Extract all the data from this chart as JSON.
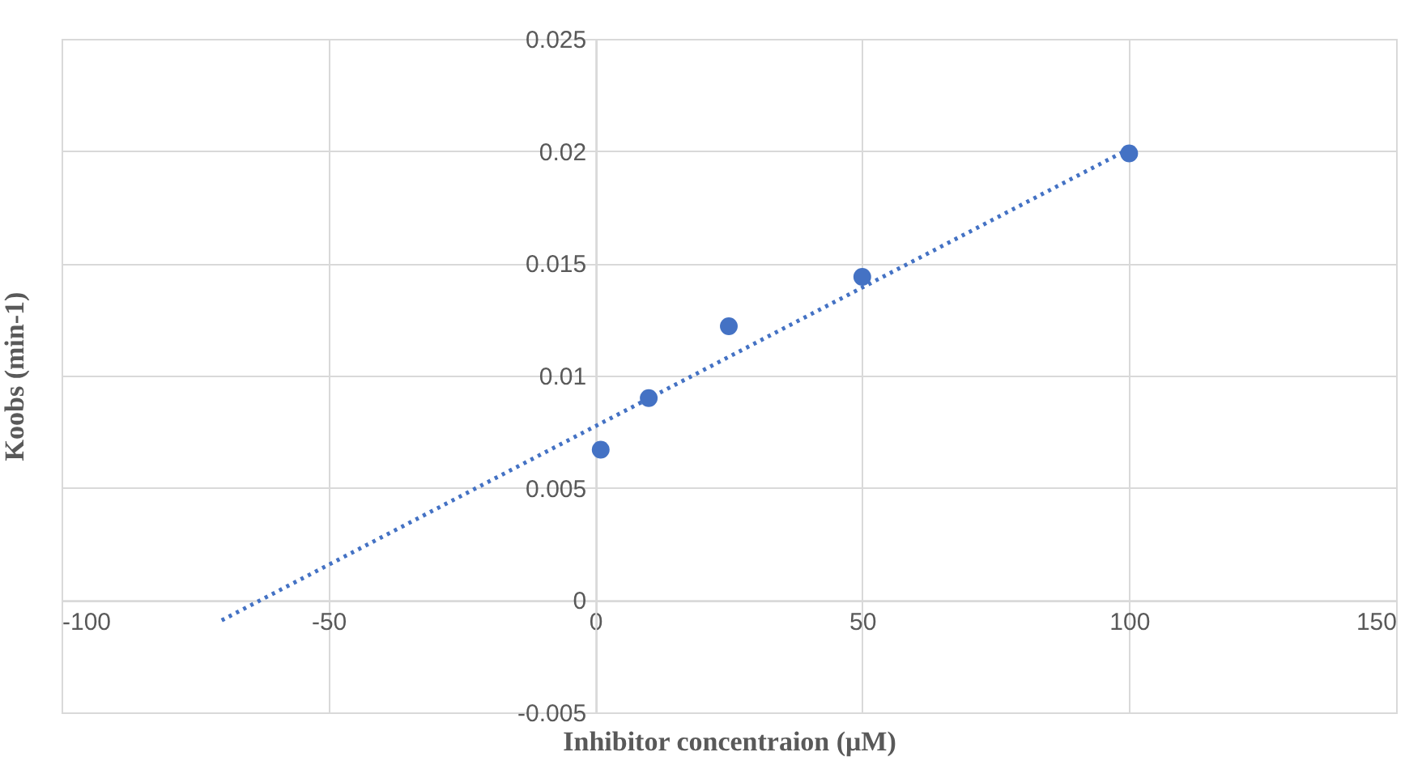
{
  "chart_data": {
    "type": "scatter",
    "xlabel": "Inhibitor  concentraion  (μM)",
    "ylabel": "Koobs  (min-1)",
    "x": [
      1,
      10,
      25,
      50,
      100
    ],
    "series": [
      {
        "color": "#4472c4",
        "marker": "circle",
        "values": [
          0.0067,
          0.009,
          0.0122,
          0.0144,
          0.0199
        ]
      },
      {
        "type": "line",
        "color": "#4472c4",
        "line_style": "dotted",
        "x": [
          -70,
          100
        ],
        "values": [
          -0.0009,
          0.0201
        ]
      }
    ],
    "xlim": [
      -100,
      150
    ],
    "xticks": [
      -100,
      -50,
      0,
      50,
      100,
      150
    ],
    "ylim": [
      -0.005,
      0.025
    ],
    "yticks": [
      -0.005,
      0,
      0.005,
      0.01,
      0.015,
      0.02,
      0.025
    ],
    "grid": true
  }
}
